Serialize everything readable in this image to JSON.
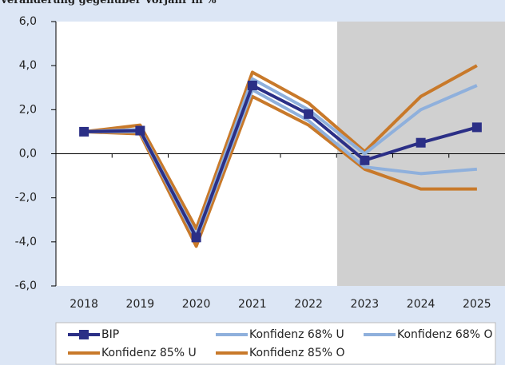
{
  "chart_data": {
    "type": "line",
    "subtitle": "Veränderung gegenüber Vorjahr in %",
    "categories": [
      "2018",
      "2019",
      "2020",
      "2021",
      "2022",
      "2023",
      "2024",
      "2025"
    ],
    "series": [
      {
        "name": "BIP",
        "color": "#2b2f86",
        "marker": "square",
        "values": [
          1.0,
          1.05,
          -3.8,
          3.1,
          1.8,
          -0.3,
          0.5,
          1.2
        ]
      },
      {
        "name": "Konfidenz 68% U",
        "color": "#8fb0dc",
        "values": [
          1.0,
          1.0,
          -3.9,
          2.9,
          1.5,
          -0.6,
          -0.9,
          -0.7
        ]
      },
      {
        "name": "Konfidenz 68% O",
        "color": "#8fb0dc",
        "values": [
          1.0,
          1.1,
          -3.7,
          3.4,
          2.0,
          0.0,
          2.0,
          3.1
        ]
      },
      {
        "name": "Konfidenz 85% U",
        "color": "#c8792a",
        "values": [
          1.0,
          0.9,
          -4.2,
          2.6,
          1.3,
          -0.7,
          -1.6,
          -1.6
        ]
      },
      {
        "name": "Konfidenz 85% O",
        "color": "#c8792a",
        "values": [
          1.0,
          1.3,
          -3.4,
          3.7,
          2.3,
          0.1,
          2.6,
          4.0
        ]
      }
    ],
    "ylim": [
      -6,
      6
    ],
    "yticks": [
      {
        "value": -6,
        "label": "-6,0"
      },
      {
        "value": -4,
        "label": "-4,0"
      },
      {
        "value": -2,
        "label": "-2,0"
      },
      {
        "value": 0,
        "label": "0,0"
      },
      {
        "value": 2,
        "label": "2,0"
      },
      {
        "value": 4,
        "label": "4,0"
      },
      {
        "value": 6,
        "label": "6,0"
      }
    ],
    "grid": false,
    "legend": "bottom"
  }
}
